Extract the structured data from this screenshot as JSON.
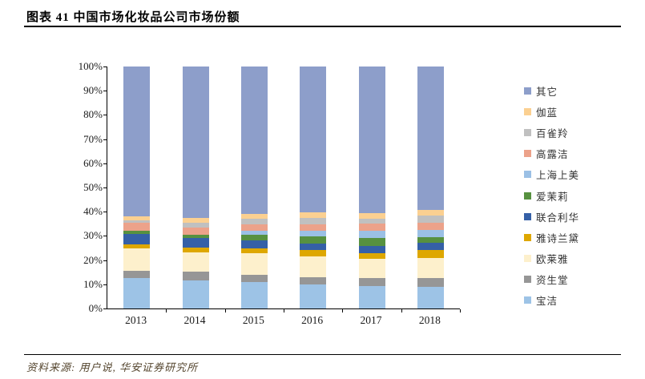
{
  "header": {
    "title": "图表 41  中国市场化妆品公司市场份额"
  },
  "footer": {
    "source_label": "资料来源: 用户说, 华安证券研究所"
  },
  "chart_data": {
    "type": "bar",
    "stacked": true,
    "percent_stacked": true,
    "title": "中国市场化妆品公司市场份额",
    "categories": [
      "2013",
      "2014",
      "2015",
      "2016",
      "2017",
      "2018"
    ],
    "value_unit": "%",
    "ylim": [
      0,
      100
    ],
    "y_ticks": [
      "0%",
      "10%",
      "20%",
      "30%",
      "40%",
      "50%",
      "60%",
      "70%",
      "80%",
      "90%",
      "100%"
    ],
    "grid": false,
    "legend_position": "right",
    "legend_order_top_to_bottom": [
      "其它",
      "伽蓝",
      "百雀羚",
      "高露洁",
      "上海上美",
      "爱茉莉",
      "联合利华",
      "雅诗兰黛",
      "欧莱雅",
      "资生堂",
      "宝洁"
    ],
    "stack_order": "bottom_to_top",
    "series": [
      {
        "name": "宝洁",
        "color": "#9DC3E6",
        "values": [
          12.6,
          11.6,
          10.9,
          9.9,
          9.4,
          8.9
        ]
      },
      {
        "name": "资生堂",
        "color": "#969696",
        "values": [
          3.0,
          3.6,
          2.9,
          3.0,
          3.1,
          3.8
        ]
      },
      {
        "name": "欧莱雅",
        "color": "#FDF0CC",
        "values": [
          9.2,
          8.0,
          8.9,
          8.6,
          7.9,
          8.3
        ]
      },
      {
        "name": "雅诗兰黛",
        "color": "#DEA700",
        "values": [
          1.8,
          2.0,
          2.3,
          2.6,
          2.6,
          3.3
        ]
      },
      {
        "name": "联合利华",
        "color": "#3560A7",
        "values": [
          4.1,
          3.8,
          3.0,
          2.6,
          3.0,
          3.0
        ]
      },
      {
        "name": "爱茉莉",
        "color": "#579140",
        "values": [
          1.3,
          1.5,
          2.6,
          3.0,
          3.0,
          2.3
        ]
      },
      {
        "name": "上海上美",
        "color": "#9BC0E5",
        "values": [
          0,
          0,
          1.7,
          2.6,
          3.0,
          3.0
        ]
      },
      {
        "name": "高露洁",
        "color": "#ECA28A",
        "values": [
          3.3,
          3.0,
          2.6,
          2.6,
          3.0,
          3.0
        ]
      },
      {
        "name": "百雀羚",
        "color": "#C0C0C0",
        "values": [
          1.2,
          2.0,
          2.3,
          2.6,
          2.0,
          3.0
        ]
      },
      {
        "name": "伽蓝",
        "color": "#FBD091",
        "values": [
          1.5,
          2.0,
          2.0,
          2.3,
          2.6,
          2.3
        ]
      },
      {
        "name": "其它",
        "color": "#8D9ECA",
        "values": [
          62.0,
          62.5,
          60.8,
          60.2,
          60.4,
          59.1
        ]
      }
    ]
  }
}
